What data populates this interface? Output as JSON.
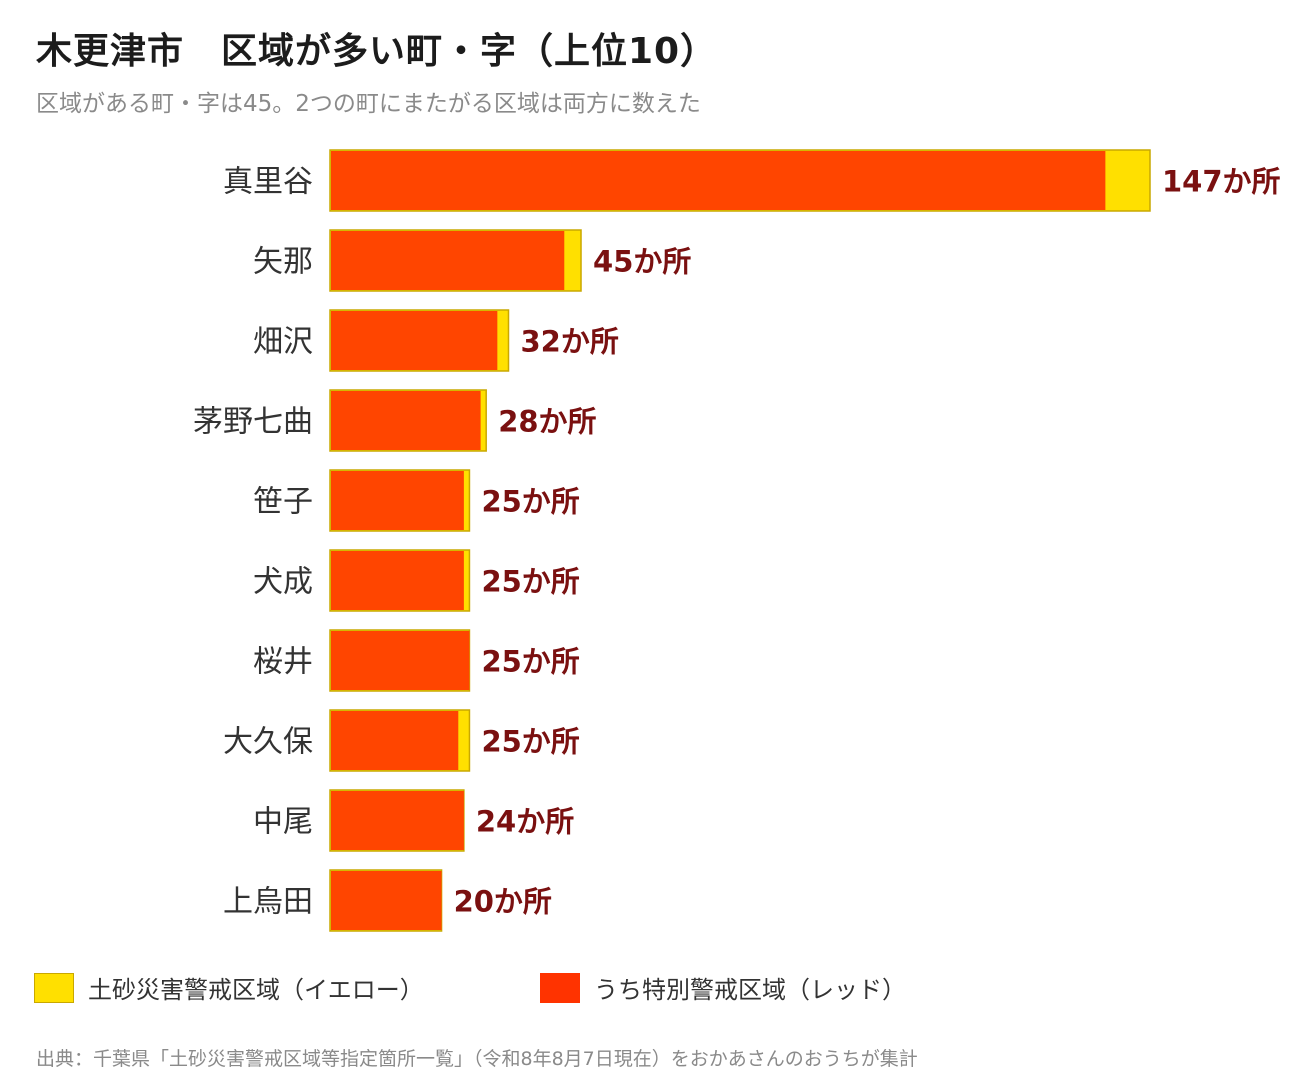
{
  "title": "木更津市　区域が多い町・字（上位10）",
  "subtitle": "区域がある町・字は45。2つの町にまたがる区域は両方に数えた",
  "source": "出典：千葉県「土砂災害警戒区域等指定箇所一覧」（令和8年8月7日現在）をおかあさんのおうちが集計",
  "colors": {
    "yellow": "#FFE000",
    "red": "#FF4500",
    "bar_border": "#C9A800",
    "value_text": "#7A1010",
    "category_text": "#333333"
  },
  "chart_data": {
    "type": "bar",
    "orientation": "horizontal",
    "stacked": true,
    "categories": [
      "真里谷",
      "矢那",
      "畑沢",
      "茅野七曲",
      "笹子",
      "犬成",
      "桜井",
      "大久保",
      "中尾",
      "上烏田"
    ],
    "series": [
      {
        "name": "うち特別警戒区域（レッド）",
        "values": [
          139,
          42,
          30,
          27,
          24,
          24,
          25,
          23,
          24,
          20
        ]
      },
      {
        "name": "土砂災害警戒区域（イエロー）",
        "values": [
          8,
          3,
          2,
          1,
          1,
          1,
          0,
          2,
          0,
          0
        ]
      }
    ],
    "totals": [
      147,
      45,
      32,
      28,
      25,
      25,
      25,
      25,
      24,
      20
    ],
    "value_labels": [
      "147か所",
      "45か所",
      "32か所",
      "28か所",
      "25か所",
      "25か所",
      "25か所",
      "25か所",
      "24か所",
      "20か所"
    ],
    "xlim": [
      0,
      147
    ],
    "grid": false,
    "legend_position": "bottom"
  },
  "legend": [
    {
      "label": "土砂災害警戒区域（イエロー）",
      "color": "#FFE000"
    },
    {
      "label": "うち特別警戒区域（レッド）",
      "color": "#FF4500"
    }
  ]
}
